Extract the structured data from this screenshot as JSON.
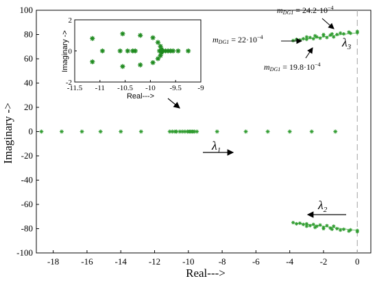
{
  "chart_data": [
    {
      "type": "scatter",
      "title": "",
      "xlabel": "Real--->",
      "ylabel": "Imaginary ->",
      "xlim": [
        -19,
        0.8
      ],
      "ylim": [
        -100,
        100
      ],
      "grid": false,
      "xticks": [
        -18,
        -16,
        -14,
        -12,
        -10,
        -8,
        -6,
        -4,
        -2,
        0
      ],
      "yticks": [
        100,
        80,
        60,
        40,
        20,
        0,
        -20,
        -40,
        -60,
        -80,
        -100
      ],
      "reference_line_x": 0,
      "series": [
        {
          "values_desc": "real-axis eigenvalues",
          "points": [
            [
              -18.7,
              0
            ],
            [
              -17.5,
              0
            ],
            [
              -16.3,
              0
            ],
            [
              -15.2,
              0
            ],
            [
              -14.0,
              0
            ],
            [
              -12.8,
              0
            ],
            [
              -11.1,
              0
            ],
            [
              -10.95,
              0
            ],
            [
              -10.8,
              0
            ],
            [
              -10.7,
              0
            ],
            [
              -10.5,
              0
            ],
            [
              -10.35,
              0
            ],
            [
              -10.2,
              0
            ],
            [
              -10.05,
              0
            ],
            [
              -9.95,
              0
            ],
            [
              -9.85,
              0
            ],
            [
              -9.75,
              0
            ],
            [
              -9.65,
              0
            ],
            [
              -9.5,
              0
            ],
            [
              -8.3,
              0
            ],
            [
              -6.6,
              0
            ],
            [
              -5.3,
              0
            ],
            [
              -4.0,
              0
            ],
            [
              -2.7,
              0
            ],
            [
              -1.3,
              0
            ]
          ]
        },
        {
          "values_desc": "lambda3 cluster",
          "points": [
            [
              -3.8,
              75
            ],
            [
              -3.4,
              75.5
            ],
            [
              -3.0,
              76
            ],
            [
              -2.6,
              76.5
            ],
            [
              -2.2,
              77
            ],
            [
              -1.8,
              77.5
            ],
            [
              -1.4,
              78
            ],
            [
              -3.6,
              76
            ],
            [
              -3.2,
              76.5
            ],
            [
              -2.8,
              77.5
            ],
            [
              -2.4,
              78
            ],
            [
              -2.0,
              79
            ],
            [
              -1.6,
              79.5
            ],
            [
              -1.2,
              80
            ],
            [
              -0.8,
              80.5
            ],
            [
              -0.4,
              81
            ],
            [
              0,
              81.5
            ],
            [
              -3.0,
              78
            ],
            [
              -2.5,
              79
            ],
            [
              -2.0,
              80
            ],
            [
              -1.5,
              80.5
            ],
            [
              -1.0,
              81.2
            ],
            [
              -0.5,
              82
            ],
            [
              0,
              82.5
            ]
          ]
        },
        {
          "values_desc": "lambda2 cluster",
          "points": [
            [
              -3.8,
              -75
            ],
            [
              -3.4,
              -75.5
            ],
            [
              -3.0,
              -76
            ],
            [
              -2.6,
              -76.5
            ],
            [
              -2.2,
              -77
            ],
            [
              -1.8,
              -77.5
            ],
            [
              -1.4,
              -78
            ],
            [
              -3.6,
              -76
            ],
            [
              -3.2,
              -76.5
            ],
            [
              -2.8,
              -77.5
            ],
            [
              -2.4,
              -78
            ],
            [
              -2.0,
              -79
            ],
            [
              -1.6,
              -79.5
            ],
            [
              -1.2,
              -80
            ],
            [
              -0.8,
              -80.5
            ],
            [
              -0.4,
              -81
            ],
            [
              0,
              -81.5
            ],
            [
              -3.0,
              -78
            ],
            [
              -2.5,
              -79
            ],
            [
              -2.0,
              -80
            ],
            [
              -1.5,
              -80.5
            ],
            [
              -1.0,
              -81.2
            ],
            [
              -0.5,
              -82
            ],
            [
              0,
              -82.5
            ]
          ]
        }
      ],
      "annotations": {
        "mdg_high": {
          "prefix": "m",
          "sub": "DG1",
          "value": " = 24.2·10",
          "exp": "−4"
        },
        "mdg_mid": {
          "prefix": "m",
          "sub": "DG1",
          "value": " = 22·10",
          "exp": "−4"
        },
        "mdg_low": {
          "prefix": "m",
          "sub": "DG1",
          "value": " = 19.8·10",
          "exp": "−4"
        },
        "lambda1": {
          "sym": "λ",
          "sub": "1"
        },
        "lambda2": {
          "sym": "λ",
          "sub": "2"
        },
        "lambda3": {
          "sym": "λ",
          "sub": "3"
        }
      }
    },
    {
      "type": "scatter",
      "title": "",
      "xlabel": "Real--->",
      "ylabel": "Imaginary ->",
      "xlim": [
        -11.5,
        -9
      ],
      "ylim": [
        -2,
        2
      ],
      "xticks": [
        -11.5,
        -11,
        -10.5,
        -10,
        -9.5,
        -9
      ],
      "xticklabels": [
        "-11.5",
        "-11",
        "-10.5",
        "-10",
        "-9.5",
        "-9"
      ],
      "yticks": [
        2,
        0,
        -2
      ],
      "series": [
        {
          "values_desc": "zoomed eigenvalues",
          "points": [
            [
              -11.15,
              0.8
            ],
            [
              -11.15,
              -0.7
            ],
            [
              -10.55,
              1.1
            ],
            [
              -10.55,
              -1.0
            ],
            [
              -10.2,
              1.0
            ],
            [
              -10.2,
              -0.9
            ],
            [
              -10.95,
              0
            ],
            [
              -10.6,
              0
            ],
            [
              -10.45,
              0
            ],
            [
              -10.35,
              0
            ],
            [
              -10.3,
              0
            ],
            [
              -9.95,
              0.85
            ],
            [
              -9.95,
              -0.75
            ],
            [
              -9.85,
              0.55
            ],
            [
              -9.85,
              -0.5
            ],
            [
              -9.8,
              0.3
            ],
            [
              -9.8,
              -0.3
            ],
            [
              -9.78,
              0.1
            ],
            [
              -9.78,
              -0.1
            ],
            [
              -9.82,
              0
            ],
            [
              -9.75,
              0
            ],
            [
              -9.7,
              0
            ],
            [
              -9.65,
              0
            ],
            [
              -9.6,
              0
            ],
            [
              -9.55,
              0
            ],
            [
              -9.45,
              0
            ],
            [
              -9.25,
              0
            ]
          ]
        }
      ]
    }
  ]
}
